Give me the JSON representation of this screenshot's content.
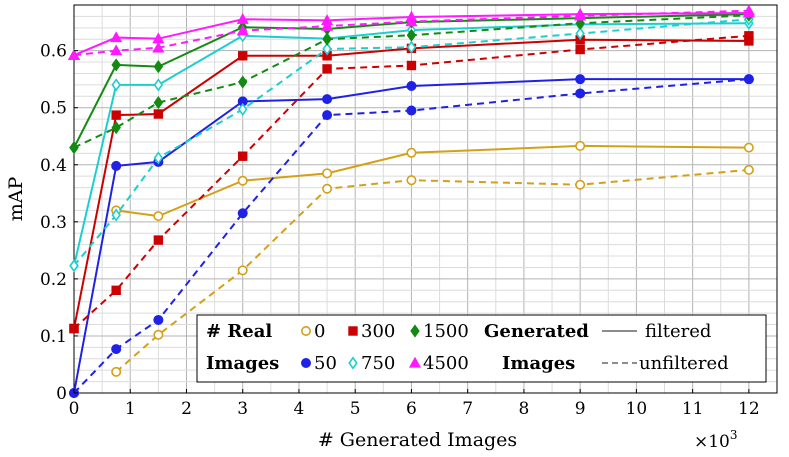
{
  "chart_data": {
    "type": "line",
    "xlabel": "# Generated Images",
    "ylabel": "mAP",
    "x_multiplier_label": "×10",
    "x_multiplier_exp": "3",
    "xlim": [
      0,
      12.5
    ],
    "ylim": [
      0,
      0.68
    ],
    "grid": true,
    "minor_grid": true,
    "legend_position": "bottom-right",
    "x_ticks": [
      "0",
      "1",
      "2",
      "3",
      "4",
      "5",
      "6",
      "7",
      "8",
      "9",
      "10",
      "11",
      "12"
    ],
    "y_ticks": [
      "0",
      "0.1",
      "0.2",
      "0.3",
      "0.4",
      "0.5",
      "0.6"
    ],
    "x_tick_values": [
      0,
      1,
      2,
      3,
      4,
      5,
      6,
      7,
      8,
      9,
      10,
      11,
      12
    ],
    "y_tick_values": [
      0,
      0.1,
      0.2,
      0.3,
      0.4,
      0.5,
      0.6
    ],
    "legend": {
      "real_label_1": "# Real",
      "real_label_2": "Images",
      "generated_label_1": "Generated",
      "generated_label_2": "Images",
      "filtered_label": "filtered",
      "unfiltered_label": "unfiltered",
      "real_counts": [
        "0",
        "300",
        "1500",
        "50",
        "750",
        "4500"
      ]
    },
    "series": [
      {
        "name": "0",
        "real_images": "0",
        "variant": "filtered",
        "color": "#d4a017",
        "marker": "circle-open",
        "x": [
          0.75,
          1.5,
          3,
          4.5,
          6,
          9,
          12
        ],
        "y": [
          0.32,
          0.31,
          0.372,
          0.385,
          0.421,
          0.433,
          0.43
        ]
      },
      {
        "name": "0",
        "real_images": "0",
        "variant": "unfiltered",
        "color": "#d4a017",
        "marker": "circle-open",
        "x": [
          0.75,
          1.5,
          3,
          4.5,
          6,
          9,
          12
        ],
        "y": [
          0.037,
          0.102,
          0.215,
          0.358,
          0.373,
          0.365,
          0.391
        ]
      },
      {
        "name": "50",
        "real_images": "50",
        "variant": "filtered",
        "color": "#1f22e6",
        "marker": "circle",
        "x": [
          0,
          0.75,
          1.5,
          3,
          4.5,
          6,
          9,
          12
        ],
        "y": [
          0.0,
          0.398,
          0.405,
          0.511,
          0.515,
          0.538,
          0.55,
          0.55
        ]
      },
      {
        "name": "50",
        "real_images": "50",
        "variant": "unfiltered",
        "color": "#1f22e6",
        "marker": "circle",
        "x": [
          0,
          0.75,
          1.5,
          3,
          4.5,
          6,
          9,
          12
        ],
        "y": [
          0.0,
          0.077,
          0.128,
          0.315,
          0.487,
          0.495,
          0.525,
          0.55
        ]
      },
      {
        "name": "300",
        "real_images": "300",
        "variant": "filtered",
        "color": "#cc0000",
        "marker": "square",
        "x": [
          0,
          0.75,
          1.5,
          3,
          4.5,
          6,
          9,
          12
        ],
        "y": [
          0.113,
          0.487,
          0.489,
          0.591,
          0.591,
          0.604,
          0.619,
          0.617
        ]
      },
      {
        "name": "300",
        "real_images": "300",
        "variant": "unfiltered",
        "color": "#cc0000",
        "marker": "square",
        "x": [
          0,
          0.75,
          1.5,
          3,
          4.5,
          6,
          9,
          12
        ],
        "y": [
          0.113,
          0.18,
          0.268,
          0.415,
          0.568,
          0.574,
          0.602,
          0.626
        ]
      },
      {
        "name": "750",
        "real_images": "750",
        "variant": "filtered",
        "color": "#1ccfcf",
        "marker": "diamond-open",
        "x": [
          0,
          0.75,
          1.5,
          3,
          4.5,
          6,
          9,
          12
        ],
        "y": [
          0.223,
          0.54,
          0.54,
          0.626,
          0.621,
          0.636,
          0.646,
          0.648
        ]
      },
      {
        "name": "750",
        "real_images": "750",
        "variant": "unfiltered",
        "color": "#1ccfcf",
        "marker": "diamond-open",
        "x": [
          0,
          0.75,
          1.5,
          3,
          4.5,
          6,
          9,
          12
        ],
        "y": [
          0.223,
          0.312,
          0.412,
          0.497,
          0.603,
          0.606,
          0.63,
          0.655
        ]
      },
      {
        "name": "1500",
        "real_images": "1500",
        "variant": "filtered",
        "color": "#138a13",
        "marker": "diamond",
        "x": [
          0,
          0.75,
          1.5,
          3,
          4.5,
          6,
          9,
          12
        ],
        "y": [
          0.43,
          0.575,
          0.572,
          0.641,
          0.638,
          0.65,
          0.657,
          0.664
        ]
      },
      {
        "name": "1500",
        "real_images": "1500",
        "variant": "unfiltered",
        "color": "#138a13",
        "marker": "diamond",
        "x": [
          0,
          0.75,
          1.5,
          3,
          4.5,
          6,
          9,
          12
        ],
        "y": [
          0.43,
          0.465,
          0.509,
          0.545,
          0.62,
          0.627,
          0.648,
          0.662
        ]
      },
      {
        "name": "4500",
        "real_images": "4500",
        "variant": "filtered",
        "color": "#ff1aff",
        "marker": "triangle",
        "x": [
          0,
          0.75,
          1.5,
          3,
          4.5,
          6,
          9,
          12
        ],
        "y": [
          0.592,
          0.623,
          0.621,
          0.655,
          0.653,
          0.659,
          0.664,
          0.666
        ]
      },
      {
        "name": "4500",
        "real_images": "4500",
        "variant": "unfiltered",
        "color": "#ff1aff",
        "marker": "triangle",
        "x": [
          0,
          0.75,
          1.5,
          3,
          4.5,
          6,
          9,
          12
        ],
        "y": [
          0.592,
          0.6,
          0.605,
          0.635,
          0.643,
          0.651,
          0.661,
          0.67
        ]
      }
    ]
  }
}
